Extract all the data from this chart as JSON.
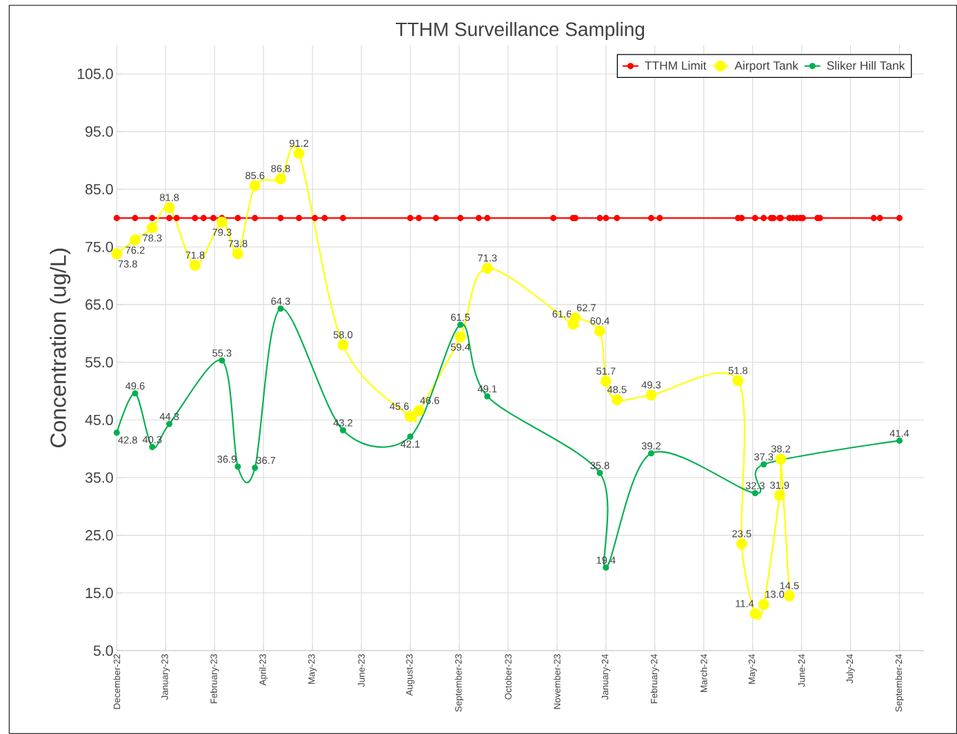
{
  "chart_data": {
    "type": "line",
    "title": "TTHM Surveillance Sampling",
    "ylabel": "Concentration (ug/L)",
    "xlim": [
      "2022-12-04",
      "2024-09-24"
    ],
    "xticks": [
      {
        "value": "2022-12-04",
        "label": "December-22"
      },
      {
        "value": "2023-01-13",
        "label": "January-23"
      },
      {
        "value": "2023-02-22",
        "label": "February-23"
      },
      {
        "value": "2023-04-03",
        "label": "April-23"
      },
      {
        "value": "2023-05-13",
        "label": "May-23"
      },
      {
        "value": "2023-06-22",
        "label": "June-23"
      },
      {
        "value": "2023-08-01",
        "label": "August-23"
      },
      {
        "value": "2023-09-10",
        "label": "September-23"
      },
      {
        "value": "2023-10-20",
        "label": "October-23"
      },
      {
        "value": "2023-11-29",
        "label": "November-23"
      },
      {
        "value": "2024-01-08",
        "label": "January-24"
      },
      {
        "value": "2024-02-17",
        "label": "February-24"
      },
      {
        "value": "2024-03-28",
        "label": "March-24"
      },
      {
        "value": "2024-05-07",
        "label": "May-24"
      },
      {
        "value": "2024-06-16",
        "label": "June-24"
      },
      {
        "value": "2024-07-26",
        "label": "July-24"
      },
      {
        "value": "2024-09-04",
        "label": "September-24"
      }
    ],
    "ylim": [
      5,
      110
    ],
    "yticks": [
      {
        "value": 5,
        "label": "5.0"
      },
      {
        "value": 15,
        "label": "15.0"
      },
      {
        "value": 25,
        "label": "25.0"
      },
      {
        "value": 35,
        "label": "35.0"
      },
      {
        "value": 45,
        "label": "45.0"
      },
      {
        "value": 55,
        "label": "55.0"
      },
      {
        "value": 65,
        "label": "65.0"
      },
      {
        "value": 75,
        "label": "75.0"
      },
      {
        "value": 85,
        "label": "85.0"
      },
      {
        "value": 95,
        "label": "95.0"
      },
      {
        "value": 105,
        "label": "105.0"
      }
    ],
    "grid": true,
    "legend": "top right",
    "marker": "circle",
    "line_style": "solid",
    "series": [
      {
        "name": "TTHM Limit",
        "color": "#ff0000",
        "x": [
          "2022-12-04",
          "2022-12-19",
          "2023-01-02",
          "2023-01-16",
          "2023-01-22",
          "2023-02-06",
          "2023-02-13",
          "2023-02-21",
          "2023-02-28",
          "2023-03-13",
          "2023-03-27",
          "2023-04-17",
          "2023-05-02",
          "2023-05-15",
          "2023-05-23",
          "2023-06-07",
          "2023-08-01",
          "2023-08-08",
          "2023-08-22",
          "2023-09-11",
          "2023-09-26",
          "2023-10-03",
          "2023-11-26",
          "2023-12-12",
          "2023-12-14",
          "2024-01-03",
          "2024-01-08",
          "2024-01-17",
          "2024-02-14",
          "2024-02-21",
          "2024-04-25",
          "2024-04-28",
          "2024-05-09",
          "2024-05-16",
          "2024-05-22",
          "2024-05-24",
          "2024-05-29",
          "2024-05-30",
          "2024-06-06",
          "2024-06-09",
          "2024-06-12",
          "2024-06-15",
          "2024-06-17",
          "2024-06-29",
          "2024-07-01",
          "2024-08-14",
          "2024-08-19",
          "2024-09-04"
        ],
        "values": [
          80,
          80,
          80,
          80,
          80,
          80,
          80,
          80,
          80,
          80,
          80,
          80,
          80,
          80,
          80,
          80,
          80,
          80,
          80,
          80,
          80,
          80,
          80,
          80,
          80,
          80,
          80,
          80,
          80,
          80,
          80,
          80,
          80,
          80,
          80,
          80,
          80,
          80,
          80,
          80,
          80,
          80,
          80,
          80,
          80,
          80,
          80,
          80
        ]
      },
      {
        "name": "Airport Tank",
        "color": "#ffff00",
        "x": [
          "2022-12-04",
          "2022-12-19",
          "2023-01-02",
          "2023-01-16",
          "2023-02-06",
          "2023-02-28",
          "2023-03-13",
          "2023-03-27",
          "2023-04-17",
          "2023-05-02",
          "2023-06-07",
          "2023-08-01",
          "2023-08-08",
          "2023-09-11",
          "2023-10-03",
          "2023-12-12",
          "2023-12-14",
          "2024-01-03",
          "2024-01-08",
          "2024-01-17",
          "2024-02-14",
          "2024-04-25",
          "2024-04-28",
          "2024-05-09",
          "2024-05-16",
          "2024-05-29",
          "2024-05-30",
          "2024-06-06"
        ],
        "values": [
          73.8,
          76.2,
          78.3,
          81.8,
          71.8,
          79.3,
          73.8,
          85.6,
          86.8,
          91.2,
          58.0,
          45.6,
          46.6,
          59.4,
          71.3,
          61.6,
          62.7,
          60.4,
          51.7,
          48.5,
          49.3,
          51.8,
          23.5,
          11.4,
          13.0,
          31.9,
          38.2,
          14.5
        ],
        "value_labels": [
          "73.8",
          "76.2",
          "78.3",
          "81.8",
          "71.8",
          "79.3",
          "73.8",
          "85.6",
          "86.8",
          "91.2",
          "58.0",
          "45.6",
          "46.6",
          "59.4",
          "71.3",
          "61.6",
          "62.7",
          "60.4",
          "51.7",
          "48.5",
          "49.3",
          "51.8",
          "23.5",
          "11.4",
          "13.0",
          "31.9",
          "38.2",
          "14.5"
        ]
      },
      {
        "name": "Sliker Hill Tank",
        "color": "#00b050",
        "x": [
          "2022-12-04",
          "2022-12-19",
          "2023-01-02",
          "2023-01-16",
          "2023-02-28",
          "2023-03-13",
          "2023-03-27",
          "2023-04-17",
          "2023-06-07",
          "2023-08-01",
          "2023-09-11",
          "2023-10-03",
          "2024-01-03",
          "2024-01-08",
          "2024-02-14",
          "2024-05-09",
          "2024-05-16",
          "2024-09-04"
        ],
        "values": [
          42.8,
          49.6,
          40.3,
          44.3,
          55.3,
          36.9,
          36.7,
          64.3,
          43.2,
          42.1,
          61.5,
          49.1,
          35.8,
          19.4,
          39.2,
          32.3,
          37.3,
          41.4
        ],
        "value_labels": [
          "42.8",
          "49.6",
          "40.3",
          "44.3",
          "55.3",
          "36.9",
          "36.7",
          "64.3",
          "43.2",
          "42.1",
          "61.5",
          "49.1",
          "35.8",
          "19.4",
          "39.2",
          "32.3",
          "37.3",
          "41.4"
        ]
      }
    ]
  }
}
